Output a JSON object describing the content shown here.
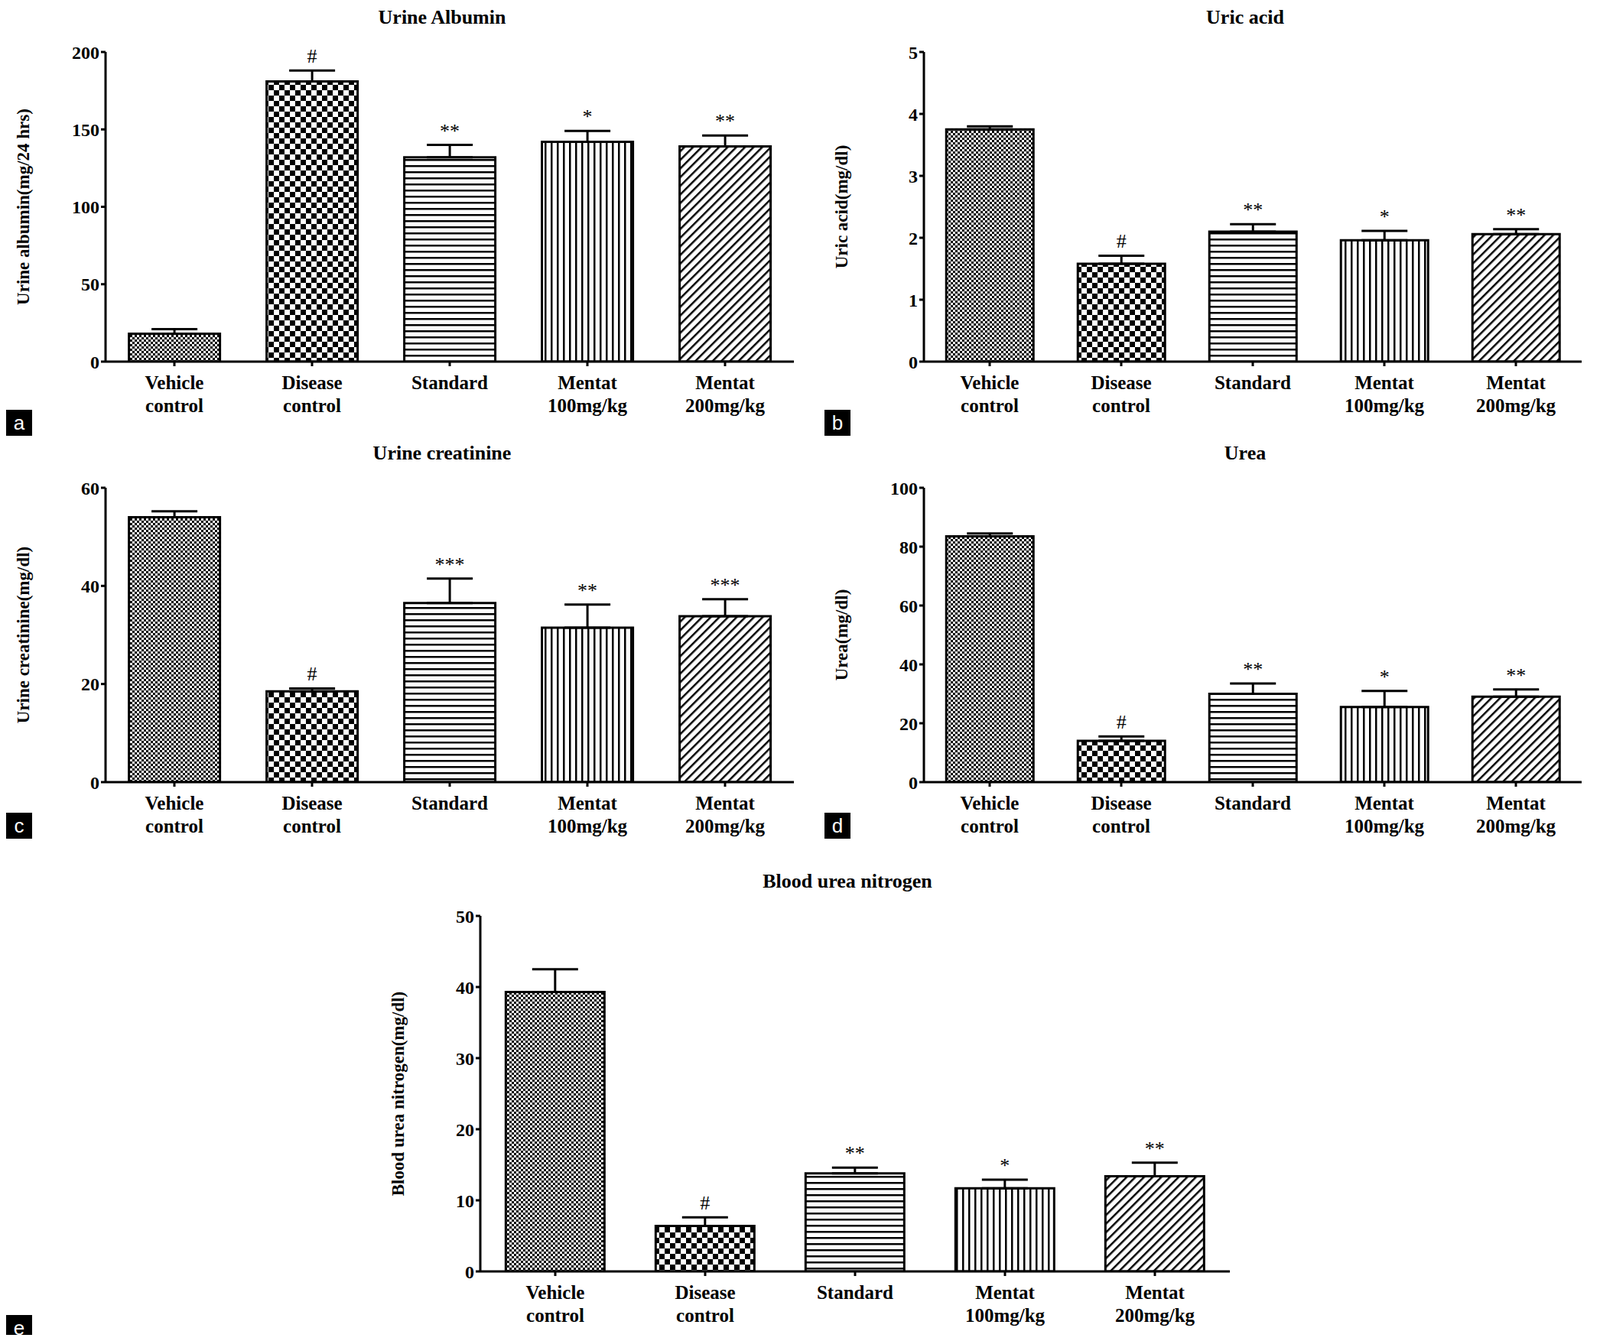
{
  "chart_data": [
    {
      "type": "bar",
      "panel": "a",
      "title": "Urine Albumin",
      "y_label": "Urine albumin(mg/24 hrs)",
      "categories": [
        "Vehicle control",
        "Disease control",
        "Standard",
        "Mentat 100mg/kg",
        "Mentat 200mg/kg"
      ],
      "values": [
        18,
        181,
        132,
        142,
        139
      ],
      "errors": [
        3,
        7,
        8,
        7,
        7
      ],
      "annotations": [
        null,
        "#",
        "**",
        "*",
        "**"
      ],
      "ylim": [
        0,
        200
      ],
      "yticks": [
        0,
        50,
        100,
        150,
        200
      ],
      "color": "#000000"
    },
    {
      "type": "bar",
      "panel": "b",
      "title": "Uric acid",
      "y_label": "Uric acid(mg/dl)",
      "categories": [
        "Vehicle control",
        "Disease control",
        "Standard",
        "Mentat 100mg/kg",
        "Mentat 200mg/kg"
      ],
      "values": [
        3.75,
        1.58,
        2.1,
        1.96,
        2.06
      ],
      "errors": [
        0.05,
        0.13,
        0.12,
        0.15,
        0.08
      ],
      "annotations": [
        null,
        "#",
        "**",
        "*",
        "**"
      ],
      "ylim": [
        0,
        5
      ],
      "yticks": [
        0,
        1,
        2,
        3,
        4,
        5
      ],
      "color": "#000000"
    },
    {
      "type": "bar",
      "panel": "c",
      "title": "Urine creatinine",
      "y_label": "Urine creatinine(mg/dl)",
      "categories": [
        "Vehicle control",
        "Disease control",
        "Standard",
        "Mentat 100mg/kg",
        "Mentat 200mg/kg"
      ],
      "values": [
        54,
        18.5,
        36.5,
        31.5,
        33.8
      ],
      "errors": [
        1.2,
        0.6,
        5,
        4.7,
        3.5
      ],
      "annotations": [
        null,
        "#",
        "***",
        "**",
        "***"
      ],
      "ylim": [
        0,
        60
      ],
      "yticks": [
        0,
        20,
        40,
        60
      ],
      "color": "#000000"
    },
    {
      "type": "bar",
      "panel": "d",
      "title": "Urea",
      "y_label": "Urea(mg/dl)",
      "categories": [
        "Vehicle control",
        "Disease control",
        "Standard",
        "Mentat 100mg/kg",
        "Mentat 200mg/kg"
      ],
      "values": [
        83.5,
        14,
        30,
        25.5,
        29
      ],
      "errors": [
        1,
        1.5,
        3.5,
        5.5,
        2.5
      ],
      "annotations": [
        null,
        "#",
        "**",
        "*",
        "**"
      ],
      "ylim": [
        0,
        100
      ],
      "yticks": [
        0,
        20,
        40,
        60,
        80,
        100
      ],
      "color": "#000000"
    },
    {
      "type": "bar",
      "panel": "e",
      "title": "Blood urea nitrogen",
      "y_label": "Blood urea nitrogen(mg/dl)",
      "categories": [
        "Vehicle control",
        "Disease control",
        "Standard",
        "Mentat 100mg/kg",
        "Mentat 200mg/kg"
      ],
      "values": [
        39.3,
        6.4,
        13.8,
        11.7,
        13.4
      ],
      "errors": [
        3.2,
        1.2,
        0.8,
        1.2,
        1.9
      ],
      "annotations": [
        null,
        "#",
        "**",
        "*",
        "**"
      ],
      "ylim": [
        0,
        50
      ],
      "yticks": [
        0,
        10,
        20,
        30,
        40,
        50
      ],
      "color": "#000000"
    }
  ]
}
